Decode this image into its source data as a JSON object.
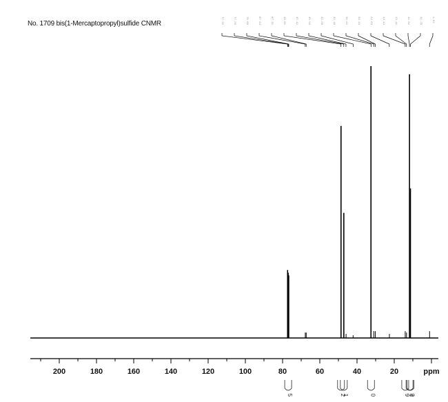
{
  "title": "No. 1709 bis(1-Mercaptopropyl)sulfide CNMR",
  "chart_data": {
    "type": "line",
    "title": "No. 1709 bis(1-Mercaptopropyl)sulfide CNMR",
    "xlabel": "ppm",
    "ylabel": "",
    "xlim": [
      215,
      0
    ],
    "ylim": [
      0,
      100
    ],
    "x_reversed": true,
    "grid": false,
    "tick_labels": [
      "200",
      "180",
      "160",
      "140",
      "120",
      "100",
      "80",
      "60",
      "40",
      "20",
      "ppm"
    ],
    "tick_values": [
      200,
      180,
      160,
      140,
      120,
      100,
      80,
      60,
      40,
      20
    ],
    "series": [
      {
        "peaks": [
          {
            "ppm": 77.3,
            "intensity": 25
          },
          {
            "ppm": 77.0,
            "intensity": 24
          },
          {
            "ppm": 76.7,
            "intensity": 23
          },
          {
            "ppm": 67.8,
            "intensity": 2
          },
          {
            "ppm": 67.3,
            "intensity": 2
          },
          {
            "ppm": 48.6,
            "intensity": 78
          },
          {
            "ppm": 47.1,
            "intensity": 46
          },
          {
            "ppm": 45.9,
            "intensity": 1.5
          },
          {
            "ppm": 42.1,
            "intensity": 1
          },
          {
            "ppm": 32.5,
            "intensity": 100
          },
          {
            "ppm": 31.0,
            "intensity": 2.5
          },
          {
            "ppm": 30.2,
            "intensity": 2.5
          },
          {
            "ppm": 22.6,
            "intensity": 1.5
          },
          {
            "ppm": 14.1,
            "intensity": 2.5
          },
          {
            "ppm": 13.4,
            "intensity": 2
          },
          {
            "ppm": 11.8,
            "intensity": 97
          },
          {
            "ppm": 11.3,
            "intensity": 55
          },
          {
            "ppm": 1.0,
            "intensity": 2.5
          }
        ]
      }
    ],
    "peak_list": [
      "77.32",
      "77.00",
      "76.68",
      "67.84",
      "67.31",
      "48.61",
      "47.12",
      "45.93",
      "42.08",
      "32.48",
      "31.02",
      "30.19",
      "22.64",
      "14.13",
      "13.41",
      "11.82",
      "11.28",
      "1.02"
    ],
    "integration_labels": [
      {
        "ppm": 77.0,
        "label": "5"
      },
      {
        "ppm": 48.6,
        "label": "2"
      },
      {
        "ppm": 47.1,
        "label": "1"
      },
      {
        "ppm": 32.5,
        "label": "0"
      },
      {
        "ppm": 14.1,
        "label": "9"
      },
      {
        "ppm": 11.8,
        "label": "4"
      },
      {
        "ppm": 11.3,
        "label": "0"
      }
    ]
  }
}
